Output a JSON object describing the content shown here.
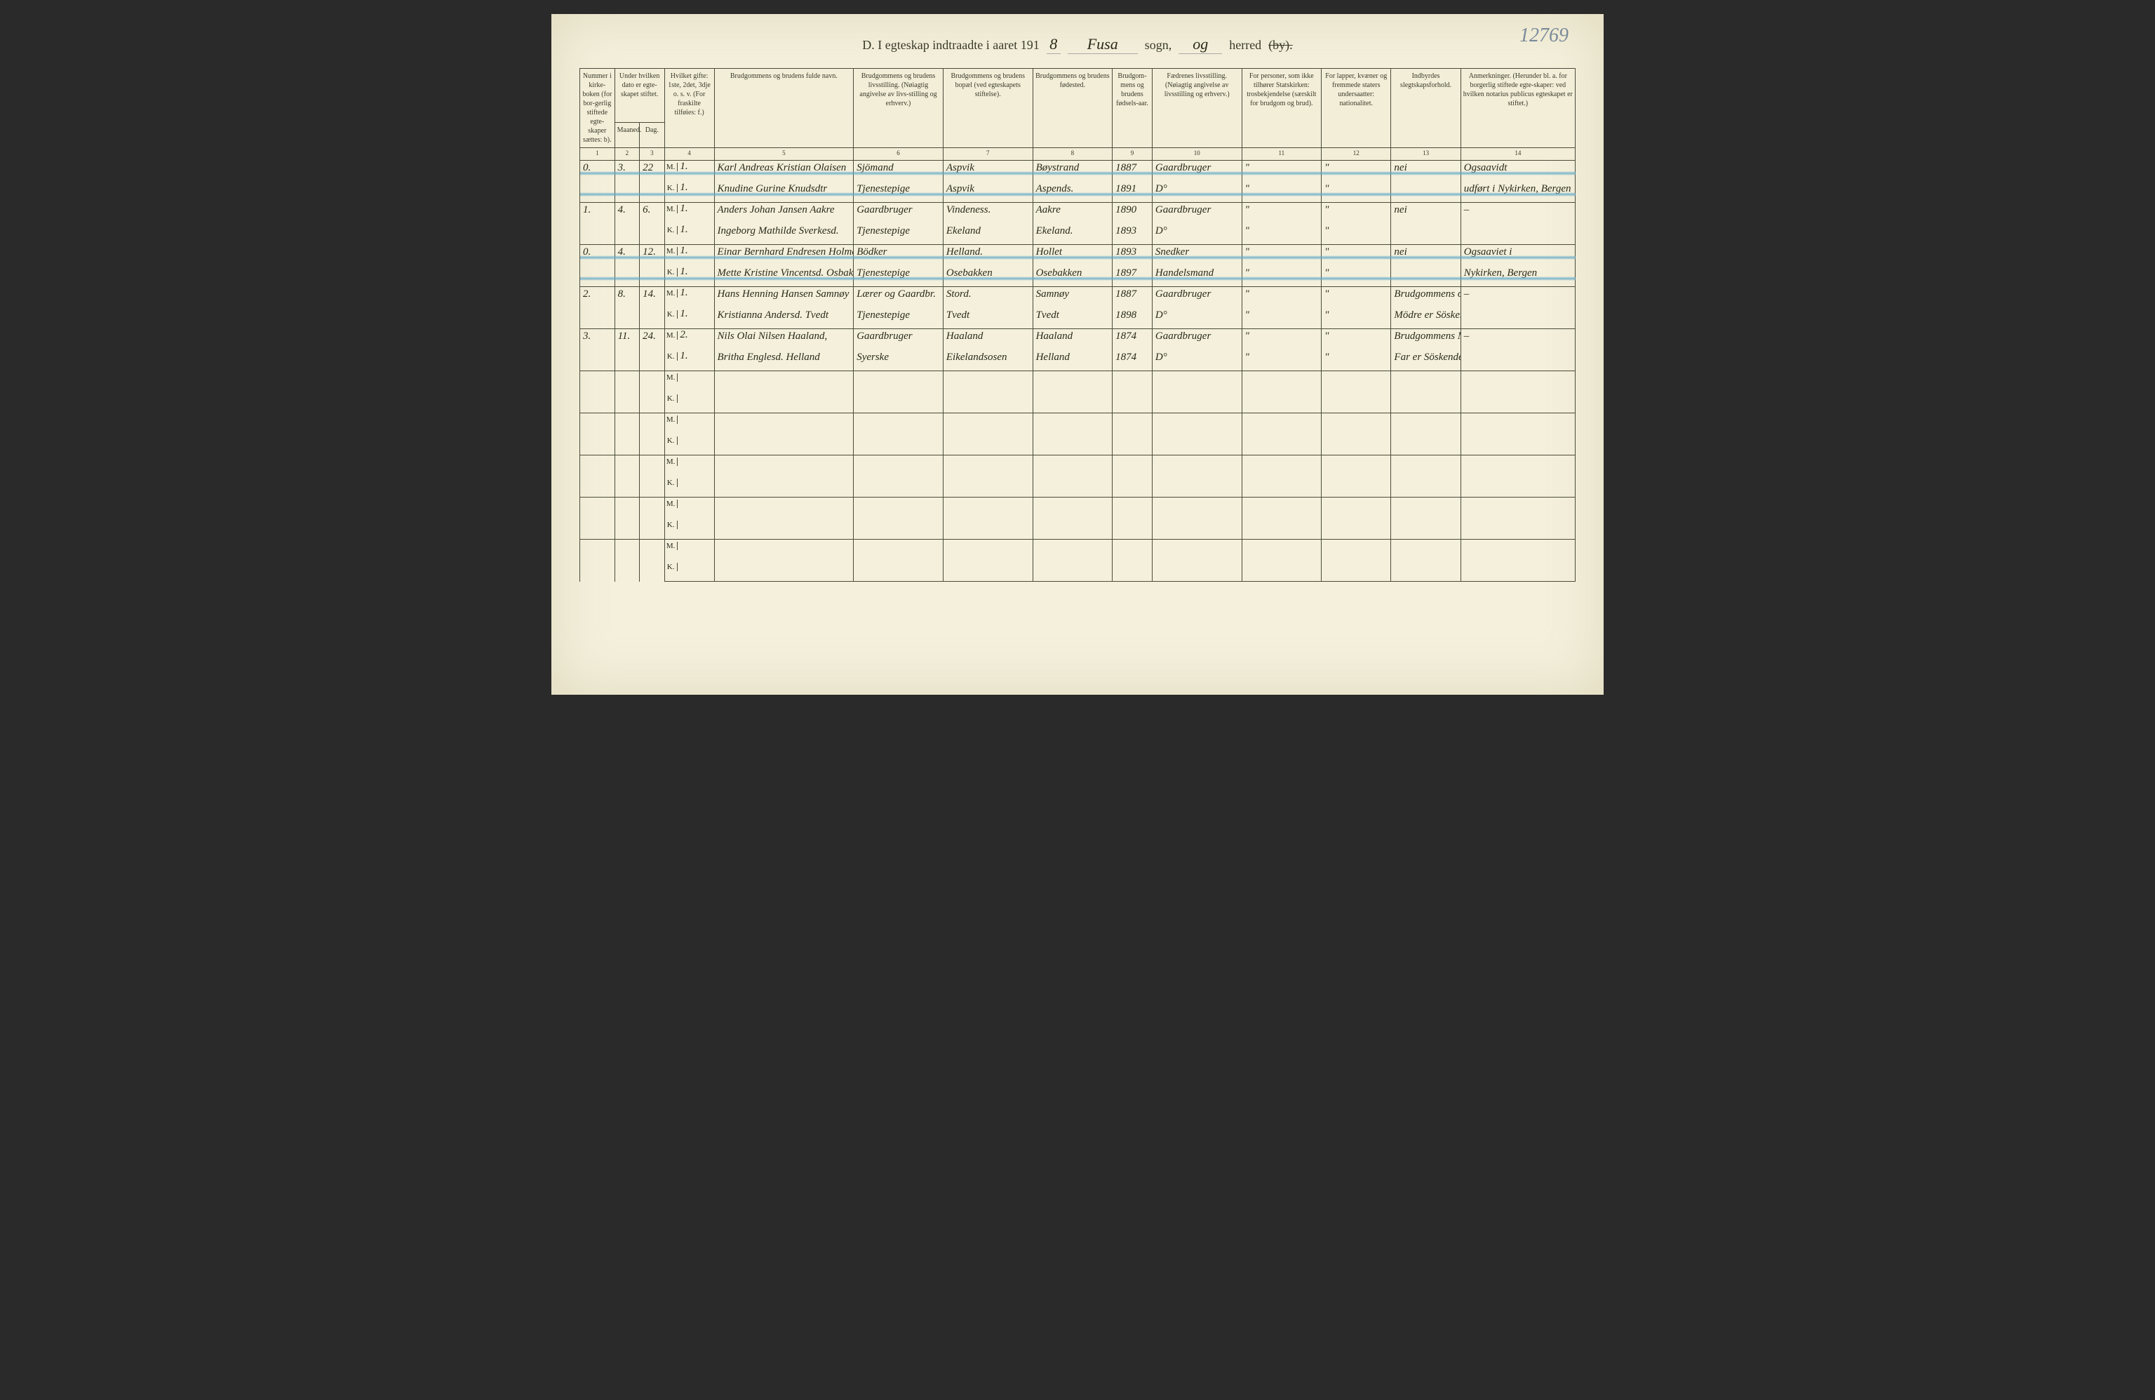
{
  "page_number": "12769",
  "header": {
    "prefix": "D.  I egteskap indtraadte i aaret 191",
    "year_suffix": "8",
    "parish": "Fusa",
    "sogn_label": "sogn,",
    "og": "og",
    "herred_label": "herred",
    "by_struck": "(by)."
  },
  "columns": {
    "c1": "Nummer i kirke-boken (for bor-gerlig stiftede egte-skaper sættes: b).",
    "c2_top": "Under hvilken dato er egte-skapet stiftet.",
    "c2a": "Maaned.",
    "c2b": "Dag.",
    "c3": "Hvilket gifte: 1ste, 2det, 3dje o. s. v. (For fraskilte tilføies: f.)",
    "c4": "Brudgommens og brudens fulde navn.",
    "c5": "Brudgommens og brudens livsstilling. (Nøiagtig angivelse av livs-stilling og erhverv.)",
    "c6": "Brudgommens og brudens bopæl (ved egteskapets stiftelse).",
    "c7": "Brudgommens og brudens fødested.",
    "c8": "Brudgom-mens og brudens fødsels-aar.",
    "c9": "Fædrenes livsstilling. (Nøiagtig angivelse av livsstilling og erhverv.)",
    "c10": "For personer, som ikke tilhører Statskirken: trosbekjendelse (særskilt for brudgom og brud).",
    "c11": "For lapper, kvæner og fremmede staters undersaatter: nationalitet.",
    "c12": "Indbyrdes slegtskapsforhold.",
    "c13": "Anmerkninger. (Herunder bl. a. for borgerlig stiftede egte-skaper: ved hvilken notarius publicus egteskapet er stiftet.)"
  },
  "colnums": [
    "1",
    "2",
    "3",
    "4",
    "5",
    "6",
    "7",
    "8",
    "9",
    "10",
    "11",
    "12",
    "13",
    "14"
  ],
  "rows": [
    {
      "struck": true,
      "num": "0.",
      "maaned": "3.",
      "dag": "22",
      "m": {
        "gifte": "1.",
        "navn": "Karl Andreas Kristian Olaisen",
        "stilling": "Sjömand",
        "bopel": "Aspvik",
        "fodested": "Bøystrand",
        "aar": "1887",
        "faedre": "Gaardbruger",
        "c11": "\"",
        "c12": "\"",
        "slegt": "nei",
        "anm": "Ogsaavidt"
      },
      "k": {
        "gifte": "1.",
        "navn": "Knudine Gurine Knudsdtr",
        "stilling": "Tjenestepige",
        "bopel": "Aspvik",
        "fodested": "Aspends.",
        "aar": "1891",
        "faedre": "D°",
        "c11": "\"",
        "c12": "\"",
        "slegt": "",
        "anm": "udført i Nykirken, Bergen"
      }
    },
    {
      "struck": false,
      "num": "1.",
      "maaned": "4.",
      "dag": "6.",
      "m": {
        "gifte": "1.",
        "navn": "Anders Johan Jansen Aakre",
        "stilling": "Gaardbruger",
        "bopel": "Vindeness.",
        "fodested": "Aakre",
        "aar": "1890",
        "faedre": "Gaardbruger",
        "c11": "\"",
        "c12": "\"",
        "slegt": "nei",
        "anm": "–"
      },
      "k": {
        "gifte": "1.",
        "navn": "Ingeborg Mathilde Sverkesd.",
        "stilling": "Tjenestepige",
        "bopel": "Ekeland",
        "fodested": "Ekeland.",
        "aar": "1893",
        "faedre": "D°",
        "c11": "\"",
        "c12": "\"",
        "slegt": "",
        "anm": ""
      }
    },
    {
      "struck": true,
      "num": "0.",
      "maaned": "4.",
      "dag": "12.",
      "m": {
        "gifte": "1.",
        "navn": "Einar Bernhard Endresen Holmefjord",
        "stilling": "Bödker",
        "bopel": "Helland.",
        "fodested": "Hollet",
        "aar": "1893",
        "faedre": "Snedker",
        "c11": "\"",
        "c12": "\"",
        "slegt": "nei",
        "anm": "Ogsaaviet i"
      },
      "k": {
        "gifte": "1.",
        "navn": "Mette Kristine Vincentsd. Osbakken",
        "stilling": "Tjenestepige",
        "bopel": "Osebakken",
        "fodested": "Osebakken",
        "aar": "1897",
        "faedre": "Handelsmand",
        "c11": "\"",
        "c12": "\"",
        "slegt": "",
        "anm": "Nykirken, Bergen"
      }
    },
    {
      "struck": false,
      "num": "2.",
      "maaned": "8.",
      "dag": "14.",
      "m": {
        "gifte": "1.",
        "navn": "Hans Henning Hansen Samnøy",
        "stilling": "Lærer og Gaardbr.",
        "bopel": "Stord.",
        "fodested": "Samnøy",
        "aar": "1887",
        "faedre": "Gaardbruger",
        "c11": "\"",
        "c12": "\"",
        "slegt": "Brudgommens og Brudens",
        "anm": "–"
      },
      "k": {
        "gifte": "1.",
        "navn": "Kristianna Andersd. Tvedt",
        "stilling": "Tjenestepige",
        "bopel": "Tvedt",
        "fodested": "Tvedt",
        "aar": "1898",
        "faedre": "D°",
        "c11": "\"",
        "c12": "\"",
        "slegt": "Mödre er Söskende",
        "anm": ""
      }
    },
    {
      "struck": false,
      "num": "3.",
      "maaned": "11.",
      "dag": "24.",
      "m": {
        "gifte": "2.",
        "navn": "Nils Olai Nilsen Haaland,",
        "stilling": "Gaardbruger",
        "bopel": "Haaland",
        "fodested": "Haaland",
        "aar": "1874",
        "faedre": "Gaardbruger",
        "c11": "\"",
        "c12": "\"",
        "slegt": "Brudgommens Mor og Brudens",
        "anm": "–"
      },
      "k": {
        "gifte": "1.",
        "navn": "Britha Englesd. Helland",
        "stilling": "Syerske",
        "bopel": "Eikelandsosen",
        "fodested": "Helland",
        "aar": "1874",
        "faedre": "D°",
        "c11": "\"",
        "c12": "\"",
        "slegt": "Far er Söskendebörn.",
        "anm": ""
      }
    },
    {
      "empty": true
    },
    {
      "empty": true
    },
    {
      "empty": true
    },
    {
      "empty": true
    },
    {
      "empty": true
    }
  ]
}
